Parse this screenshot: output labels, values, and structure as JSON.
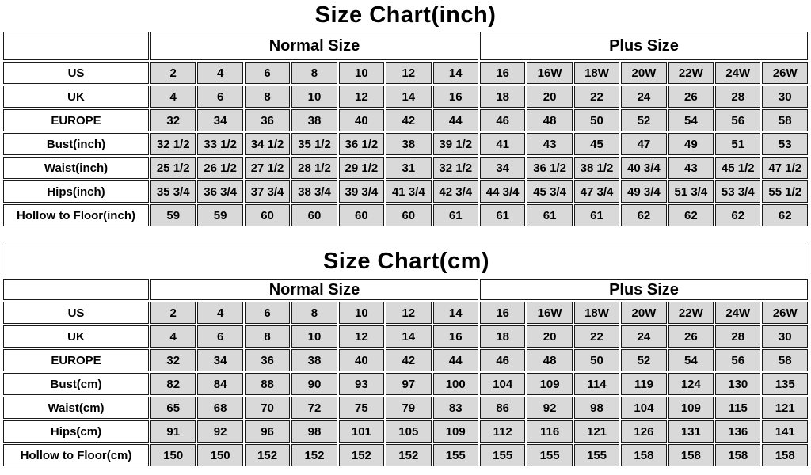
{
  "colors": {
    "background": "#ffffff",
    "data_cell_bg": "#d9d9d9",
    "label_cell_bg": "#ffffff",
    "border": "#1a1a1a",
    "text": "#000000"
  },
  "chart_data": [
    {
      "type": "table",
      "title": "Size Chart(inch)",
      "group_headers": [
        "Normal Size",
        "Plus Size"
      ],
      "group_spans": [
        7,
        7
      ],
      "rows": [
        {
          "label": "US",
          "values": [
            "2",
            "4",
            "6",
            "8",
            "10",
            "12",
            "14",
            "16",
            "16W",
            "18W",
            "20W",
            "22W",
            "24W",
            "26W"
          ]
        },
        {
          "label": "UK",
          "values": [
            "4",
            "6",
            "8",
            "10",
            "12",
            "14",
            "16",
            "18",
            "20",
            "22",
            "24",
            "26",
            "28",
            "30"
          ]
        },
        {
          "label": "EUROPE",
          "values": [
            "32",
            "34",
            "36",
            "38",
            "40",
            "42",
            "44",
            "46",
            "48",
            "50",
            "52",
            "54",
            "56",
            "58"
          ]
        },
        {
          "label": "Bust(inch)",
          "values": [
            "32 1/2",
            "33 1/2",
            "34 1/2",
            "35 1/2",
            "36 1/2",
            "38",
            "39 1/2",
            "41",
            "43",
            "45",
            "47",
            "49",
            "51",
            "53"
          ]
        },
        {
          "label": "Waist(inch)",
          "values": [
            "25 1/2",
            "26 1/2",
            "27 1/2",
            "28 1/2",
            "29 1/2",
            "31",
            "32 1/2",
            "34",
            "36 1/2",
            "38 1/2",
            "40 3/4",
            "43",
            "45 1/2",
            "47 1/2"
          ]
        },
        {
          "label": "Hips(inch)",
          "values": [
            "35 3/4",
            "36 3/4",
            "37 3/4",
            "38 3/4",
            "39 3/4",
            "41 3/4",
            "42 3/4",
            "44 3/4",
            "45 3/4",
            "47 3/4",
            "49 3/4",
            "51 3/4",
            "53 3/4",
            "55 1/2"
          ]
        },
        {
          "label": "Hollow to Floor(inch)",
          "values": [
            "59",
            "59",
            "60",
            "60",
            "60",
            "60",
            "61",
            "61",
            "61",
            "61",
            "62",
            "62",
            "62",
            "62"
          ]
        }
      ]
    },
    {
      "type": "table",
      "title": "Size Chart(cm)",
      "group_headers": [
        "Normal Size",
        "Plus Size"
      ],
      "group_spans": [
        7,
        7
      ],
      "rows": [
        {
          "label": "US",
          "values": [
            "2",
            "4",
            "6",
            "8",
            "10",
            "12",
            "14",
            "16",
            "16W",
            "18W",
            "20W",
            "22W",
            "24W",
            "26W"
          ]
        },
        {
          "label": "UK",
          "values": [
            "4",
            "6",
            "8",
            "10",
            "12",
            "14",
            "16",
            "18",
            "20",
            "22",
            "24",
            "26",
            "28",
            "30"
          ]
        },
        {
          "label": "EUROPE",
          "values": [
            "32",
            "34",
            "36",
            "38",
            "40",
            "42",
            "44",
            "46",
            "48",
            "50",
            "52",
            "54",
            "56",
            "58"
          ]
        },
        {
          "label": "Bust(cm)",
          "values": [
            "82",
            "84",
            "88",
            "90",
            "93",
            "97",
            "100",
            "104",
            "109",
            "114",
            "119",
            "124",
            "130",
            "135"
          ]
        },
        {
          "label": "Waist(cm)",
          "values": [
            "65",
            "68",
            "70",
            "72",
            "75",
            "79",
            "83",
            "86",
            "92",
            "98",
            "104",
            "109",
            "115",
            "121"
          ]
        },
        {
          "label": "Hips(cm)",
          "values": [
            "91",
            "92",
            "96",
            "98",
            "101",
            "105",
            "109",
            "112",
            "116",
            "121",
            "126",
            "131",
            "136",
            "141"
          ]
        },
        {
          "label": "Hollow to Floor(cm)",
          "values": [
            "150",
            "150",
            "152",
            "152",
            "152",
            "152",
            "155",
            "155",
            "155",
            "155",
            "158",
            "158",
            "158",
            "158"
          ]
        }
      ]
    }
  ]
}
